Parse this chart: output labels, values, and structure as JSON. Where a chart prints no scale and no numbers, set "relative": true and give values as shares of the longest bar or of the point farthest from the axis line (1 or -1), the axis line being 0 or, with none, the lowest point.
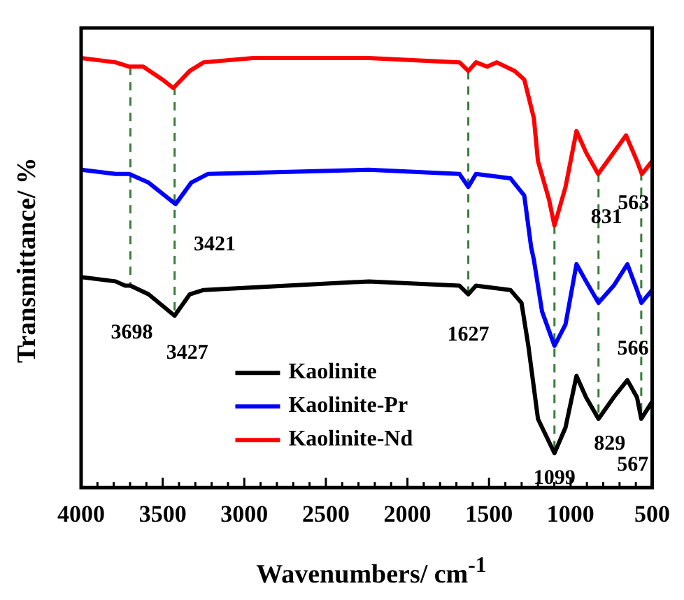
{
  "chart_data": {
    "type": "line",
    "relative": true,
    "xlabel": "Wavenumbers/ cm$^{-1}$",
    "ylabel": "Transmittance/ %",
    "xlim": [
      4000,
      500
    ],
    "xticks": [
      4000,
      {
        "value": 3900,
        "label": null
      },
      {
        "value": 3800,
        "label": null
      },
      {
        "value": 3700,
        "label": null
      },
      {
        "value": 3600,
        "label": null
      },
      3500,
      {
        "value": 3400,
        "label": null
      },
      {
        "value": 3300,
        "label": null
      },
      {
        "value": 3200,
        "label": null
      },
      {
        "value": 3100,
        "label": null
      },
      3000,
      {
        "value": 2900,
        "label": null
      },
      {
        "value": 2800,
        "label": null
      },
      {
        "value": 2700,
        "label": null
      },
      {
        "value": 2600,
        "label": null
      },
      2500,
      {
        "value": 2400,
        "label": null
      },
      {
        "value": 2300,
        "label": null
      },
      {
        "value": 2200,
        "label": null
      },
      {
        "value": 2100,
        "label": null
      },
      2000,
      {
        "value": 1900,
        "label": null
      },
      {
        "value": 1800,
        "label": null
      },
      {
        "value": 1700,
        "label": null
      },
      {
        "value": 1600,
        "label": null
      },
      1500,
      {
        "value": 1400,
        "label": null
      },
      {
        "value": 1300,
        "label": null
      },
      {
        "value": 1200,
        "label": null
      },
      {
        "value": 1100,
        "label": null
      },
      1000,
      {
        "value": 900,
        "label": null
      },
      {
        "value": 800,
        "label": null
      },
      {
        "value": 700,
        "label": null
      },
      {
        "value": 600,
        "label": null
      },
      500
    ],
    "legend": "bottom",
    "grid": false,
    "marker": "none",
    "line_style": "solid",
    "series": [
      {
        "name": "Kaolinite",
        "color": "#000000",
        "x": [
          4000,
          3789,
          3730,
          3698,
          3587,
          3427,
          3334,
          3249,
          2237,
          1681,
          1627,
          1580,
          1369,
          1301,
          1259,
          1200,
          1099,
          1031,
          964,
          905,
          829,
          736,
          652,
          593,
          567,
          500
        ],
        "values": [
          0.49,
          0.48,
          0.47,
          0.47,
          0.45,
          0.4,
          0.45,
          0.46,
          0.48,
          0.47,
          0.45,
          0.47,
          0.46,
          0.43,
          0.33,
          0.16,
          0.08,
          0.14,
          0.26,
          0.21,
          0.16,
          0.21,
          0.25,
          0.21,
          0.16,
          0.2
        ]
      },
      {
        "name": "Kaolinite-Pr",
        "color": "#0000ff",
        "x": [
          4000,
          3789,
          3705,
          3587,
          3421,
          3325,
          3224,
          2237,
          1681,
          1627,
          1580,
          1369,
          1284,
          1242,
          1225,
          1175,
          1099,
          1031,
          964,
          905,
          829,
          736,
          652,
          593,
          566,
          500
        ],
        "values": [
          0.74,
          0.73,
          0.73,
          0.71,
          0.66,
          0.71,
          0.73,
          0.74,
          0.73,
          0.7,
          0.73,
          0.72,
          0.68,
          0.56,
          0.53,
          0.41,
          0.33,
          0.38,
          0.52,
          0.48,
          0.43,
          0.47,
          0.52,
          0.46,
          0.43,
          0.46
        ]
      },
      {
        "name": "Kaolinite-Nd",
        "color": "#ff0000",
        "x": [
          4000,
          3789,
          3705,
          3620,
          3502,
          3435,
          3334,
          3249,
          2946,
          2237,
          1681,
          1627,
          1580,
          1512,
          1453,
          1343,
          1284,
          1225,
          1200,
          1132,
          1099,
          1031,
          964,
          905,
          831,
          736,
          660,
          593,
          563,
          500
        ],
        "values": [
          1.0,
          0.99,
          0.98,
          0.98,
          0.95,
          0.93,
          0.97,
          0.99,
          1.0,
          1.0,
          0.99,
          0.97,
          0.99,
          0.98,
          0.99,
          0.97,
          0.95,
          0.86,
          0.76,
          0.67,
          0.61,
          0.7,
          0.83,
          0.78,
          0.73,
          0.78,
          0.82,
          0.76,
          0.73,
          0.76
        ]
      }
    ],
    "ref_lines": [
      {
        "axis": "x",
        "value": 3698,
        "color": "#3a7d3a",
        "line_style": "dashed"
      },
      {
        "axis": "x",
        "value": 3427,
        "color": "#3a7d3a",
        "line_style": "dashed"
      },
      {
        "axis": "x",
        "value": 1627,
        "color": "#3a7d3a",
        "line_style": "dashed"
      },
      {
        "axis": "x",
        "value": 1099,
        "color": "#3a7d3a",
        "line_style": "dashed"
      },
      {
        "axis": "x",
        "value": 829,
        "color": "#3a7d3a",
        "line_style": "dashed"
      },
      {
        "axis": "x",
        "value": 567,
        "color": "#3a7d3a",
        "line_style": "dashed"
      }
    ],
    "annotations": [
      {
        "text": "3421",
        "x": 3421,
        "y": 0.66
      },
      {
        "text": "3698",
        "x": 3698,
        "y": 0.47
      },
      {
        "text": "3427",
        "x": 3427,
        "y": 0.4
      },
      {
        "text": "1627",
        "x": 1627,
        "y": 0.45
      },
      {
        "text": "1099",
        "x": 1099,
        "y": 0.08
      },
      {
        "text": "829",
        "x": 829,
        "y": 0.16
      },
      {
        "text": "567",
        "x": 567,
        "y": 0.16
      },
      {
        "text": "566",
        "x": 566,
        "y": 0.43
      },
      {
        "text": "831",
        "x": 831,
        "y": 0.73
      },
      {
        "text": "563",
        "x": 563,
        "y": 0.73
      }
    ]
  }
}
